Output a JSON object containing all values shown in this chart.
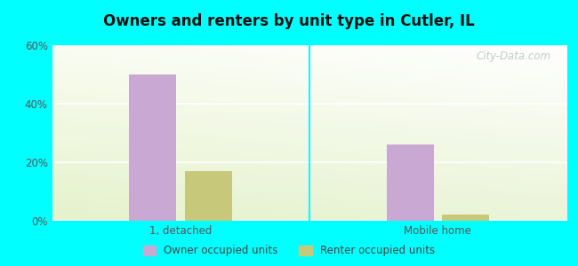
{
  "title": "Owners and renters by unit type in Cutler, IL",
  "categories": [
    "1, detached",
    "Mobile home"
  ],
  "owner_values": [
    50,
    26
  ],
  "renter_values": [
    17,
    2
  ],
  "owner_color": "#c9a8d4",
  "renter_color": "#c8c87a",
  "ylim": [
    0,
    60
  ],
  "yticks": [
    0,
    20,
    40,
    60
  ],
  "ytick_labels": [
    "0%",
    "20%",
    "40%",
    "60%"
  ],
  "background_cyan": "#00ffff",
  "watermark": "City-Data.com",
  "legend_owner": "Owner occupied units",
  "legend_renter": "Renter occupied units",
  "bar_width": 0.55,
  "group_positions": [
    1.5,
    4.5
  ],
  "xlim": [
    0,
    6.0
  ]
}
